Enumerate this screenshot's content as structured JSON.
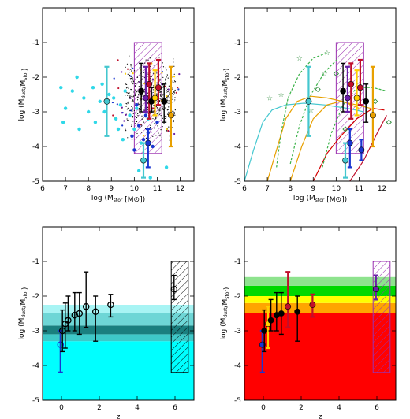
{
  "chart_data": [
    {
      "type": "scatter",
      "panel": "top-left",
      "xlabel": "log (M_stor [M_sun])",
      "ylabel": "log (M_dust/M_stor)",
      "xlim": [
        6,
        12.6
      ],
      "ylim": [
        -5,
        0
      ],
      "xticks": [
        "6",
        "7",
        "8",
        "9",
        "10",
        "11",
        "12"
      ],
      "yticks": [
        "-5",
        "-4",
        "-3",
        "-2",
        "-1"
      ],
      "hatched_box": {
        "x": [
          10.0,
          11.2
        ],
        "y": [
          -4.2,
          -1.0
        ],
        "color": "#9b30b0"
      },
      "cyan_points": [
        [
          6.8,
          -2.3
        ],
        [
          7.0,
          -2.9
        ],
        [
          7.3,
          -2.4
        ],
        [
          7.6,
          -3.5
        ],
        [
          7.8,
          -2.6
        ],
        [
          8.0,
          -3.0
        ],
        [
          8.2,
          -2.3
        ],
        [
          8.3,
          -3.3
        ],
        [
          8.5,
          -2.7
        ],
        [
          8.7,
          -3.0
        ],
        [
          8.9,
          -2.5
        ],
        [
          9.1,
          -2.6
        ],
        [
          9.2,
          -3.2
        ],
        [
          9.4,
          -2.8
        ],
        [
          9.5,
          -3.8
        ],
        [
          9.6,
          -2.4
        ],
        [
          9.8,
          -3.1
        ],
        [
          10.0,
          -3.5
        ],
        [
          10.1,
          -2.9
        ],
        [
          10.3,
          -3.9
        ],
        [
          10.5,
          -4.4
        ],
        [
          10.6,
          -3.2
        ],
        [
          10.8,
          -2.7
        ],
        [
          6.9,
          -3.3
        ],
        [
          7.5,
          -2.0
        ],
        [
          8.6,
          -2.2
        ],
        [
          9.3,
          -3.5
        ],
        [
          10.2,
          -4.7
        ],
        [
          10.7,
          -4.9
        ],
        [
          11.4,
          -4.6
        ]
      ],
      "blue_points": [
        [
          9.9,
          -3.7
        ],
        [
          10.0,
          -4.1
        ],
        [
          10.2,
          -3.4
        ],
        [
          10.4,
          -3.8
        ],
        [
          10.6,
          -3.6
        ],
        [
          10.8,
          -4.0
        ],
        [
          11.0,
          -3.3
        ],
        [
          10.1,
          -2.8
        ],
        [
          10.5,
          -3.1
        ]
      ],
      "errorbars": [
        {
          "x": 8.8,
          "y": -2.7,
          "lo": -3.7,
          "hi": -1.7,
          "color": "#44c7cf"
        },
        {
          "x": 10.3,
          "y": -2.4,
          "lo": -3.0,
          "hi": -1.6,
          "color": "#000000"
        },
        {
          "x": 10.5,
          "y": -2.6,
          "lo": -3.0,
          "hi": -1.7,
          "color": "#6a1fa8"
        },
        {
          "x": 10.65,
          "y": -2.2,
          "lo": -3.2,
          "hi": -1.6,
          "color": "#c0102c"
        },
        {
          "x": 10.75,
          "y": -2.7,
          "lo": -3.0,
          "hi": -2.3,
          "color": "#000000"
        },
        {
          "x": 10.9,
          "y": -2.6,
          "lo": -3.1,
          "hi": -1.8,
          "color": "#ffd000"
        },
        {
          "x": 11.05,
          "y": -2.3,
          "lo": -2.8,
          "hi": -1.5,
          "color": "#c0102c"
        },
        {
          "x": 11.3,
          "y": -2.7,
          "lo": -3.3,
          "hi": -2.2,
          "color": "#000000"
        },
        {
          "x": 11.6,
          "y": -3.1,
          "lo": -4.0,
          "hi": -1.7,
          "color": "#e8a000"
        },
        {
          "x": 10.6,
          "y": -3.9,
          "lo": -4.6,
          "hi": -3.5,
          "color": "#1a35d0"
        },
        {
          "x": 10.4,
          "y": -4.4,
          "lo": -4.9,
          "hi": -3.9,
          "color": "#44c7cf"
        }
      ]
    },
    {
      "type": "line",
      "panel": "top-right",
      "xlabel": "log (M_stor [M_sun])",
      "ylabel": "log (M_dust/M_stor)",
      "xlim": [
        6,
        12.6
      ],
      "ylim": [
        -5,
        0
      ],
      "xticks": [
        "6",
        "7",
        "8",
        "9",
        "10",
        "11",
        "12"
      ],
      "yticks": [
        "-5",
        "-4",
        "-3",
        "-2",
        "-1"
      ],
      "hatched_box": {
        "x": [
          10.0,
          11.2
        ],
        "y": [
          -4.2,
          -1.0
        ],
        "color": "#9b30b0"
      },
      "series": [
        {
          "color": "#44c7cf",
          "dash": false,
          "points": [
            [
              6.0,
              -5.0
            ],
            [
              6.4,
              -4.1
            ],
            [
              6.8,
              -3.3
            ],
            [
              7.2,
              -2.95
            ],
            [
              7.8,
              -2.8
            ],
            [
              8.6,
              -2.75
            ],
            [
              9.5,
              -2.8
            ],
            [
              10.5,
              -2.9
            ],
            [
              11.2,
              -3.0
            ]
          ]
        },
        {
          "color": "#e8a000",
          "dash": false,
          "points": [
            [
              7.0,
              -5.0
            ],
            [
              7.4,
              -4.1
            ],
            [
              7.8,
              -3.2
            ],
            [
              8.3,
              -2.7
            ],
            [
              8.9,
              -2.55
            ],
            [
              9.6,
              -2.6
            ],
            [
              10.3,
              -2.7
            ],
            [
              11.0,
              -2.9
            ]
          ]
        },
        {
          "color": "#e8a000",
          "dash": false,
          "points": [
            [
              8.0,
              -5.0
            ],
            [
              8.5,
              -4.0
            ],
            [
              9.0,
              -3.2
            ],
            [
              9.6,
              -2.8
            ],
            [
              10.2,
              -2.7
            ],
            [
              10.9,
              -2.8
            ],
            [
              11.5,
              -2.9
            ]
          ]
        },
        {
          "color": "#d40000",
          "dash": false,
          "points": [
            [
              9.0,
              -5.0
            ],
            [
              9.6,
              -4.2
            ],
            [
              10.2,
              -3.7
            ],
            [
              10.9,
              -3.2
            ],
            [
              11.6,
              -2.9
            ],
            [
              12.1,
              -2.95
            ]
          ]
        },
        {
          "color": "#c0102c",
          "dash": false,
          "points": [
            [
              10.6,
              -5.0
            ],
            [
              11.2,
              -4.4
            ],
            [
              11.8,
              -3.6
            ],
            [
              12.2,
              -3.1
            ]
          ]
        },
        {
          "color": "#3cb34a",
          "dash": true,
          "points": [
            [
              7.4,
              -4.6
            ],
            [
              7.6,
              -3.6
            ],
            [
              7.9,
              -2.6
            ],
            [
              8.4,
              -1.9
            ],
            [
              9.0,
              -1.45
            ],
            [
              9.6,
              -1.3
            ]
          ]
        },
        {
          "color": "#3cb34a",
          "dash": true,
          "points": [
            [
              8.0,
              -4.5
            ],
            [
              8.4,
              -3.4
            ],
            [
              8.9,
              -2.5
            ],
            [
              9.5,
              -1.85
            ],
            [
              10.1,
              -1.45
            ]
          ]
        },
        {
          "color": "#3cb34a",
          "dash": true,
          "points": [
            [
              9.4,
              -4.6
            ],
            [
              9.8,
              -3.6
            ],
            [
              10.3,
              -2.8
            ],
            [
              10.9,
              -2.3
            ],
            [
              11.6,
              -2.3
            ],
            [
              12.2,
              -2.4
            ]
          ]
        }
      ],
      "stars": [
        [
          7.1,
          -2.6
        ],
        [
          7.6,
          -2.5
        ],
        [
          8.4,
          -1.45
        ],
        [
          8.9,
          -2.95
        ],
        [
          9.5,
          -1.9
        ],
        [
          9.6,
          -1.3
        ]
      ],
      "diamonds": [
        [
          9.2,
          -2.35
        ],
        [
          10.0,
          -1.9
        ],
        [
          10.4,
          -3.5
        ],
        [
          11.7,
          -2.7
        ],
        [
          12.3,
          -3.3
        ]
      ],
      "errorbars": [
        {
          "x": 8.8,
          "y": -2.7,
          "lo": -3.7,
          "hi": -1.7,
          "color": "#44c7cf"
        },
        {
          "x": 10.3,
          "y": -2.4,
          "lo": -3.0,
          "hi": -1.6,
          "color": "#000000"
        },
        {
          "x": 10.5,
          "y": -2.6,
          "lo": -3.0,
          "hi": -1.7,
          "color": "#6a1fa8"
        },
        {
          "x": 10.65,
          "y": -2.2,
          "lo": -3.2,
          "hi": -1.6,
          "color": "#c0102c"
        },
        {
          "x": 10.9,
          "y": -2.6,
          "lo": -3.1,
          "hi": -1.8,
          "color": "#ffd000"
        },
        {
          "x": 11.05,
          "y": -2.3,
          "lo": -2.8,
          "hi": -1.5,
          "color": "#c0102c"
        },
        {
          "x": 11.3,
          "y": -2.7,
          "lo": -3.3,
          "hi": -2.2,
          "color": "#000000"
        },
        {
          "x": 11.6,
          "y": -3.1,
          "lo": -4.0,
          "hi": -1.7,
          "color": "#e8a000"
        },
        {
          "x": 10.6,
          "y": -3.9,
          "lo": -4.6,
          "hi": -3.5,
          "color": "#1a35d0"
        },
        {
          "x": 10.4,
          "y": -4.4,
          "lo": -4.9,
          "hi": -3.9,
          "color": "#44c7cf"
        },
        {
          "x": 11.1,
          "y": -4.1,
          "lo": -4.4,
          "hi": -3.8,
          "color": "#1a35d0"
        }
      ]
    },
    {
      "type": "scatter",
      "panel": "bottom-left",
      "xlabel": "z",
      "ylabel": "log (M_dust/M_stor)",
      "xlim": [
        -1,
        7
      ],
      "ylim": [
        -5,
        0
      ],
      "xticks": [
        "0",
        "2",
        "4",
        "6"
      ],
      "yticks": [
        "-5",
        "-4",
        "-3",
        "-2",
        "-1"
      ],
      "bands": [
        {
          "y": [
            -5.0,
            -3.3
          ],
          "color": "#00ffff"
        },
        {
          "y": [
            -3.3,
            -3.1
          ],
          "color": "#3ec8c8"
        },
        {
          "y": [
            -3.1,
            -2.85
          ],
          "color": "#1a7f7f"
        },
        {
          "y": [
            -2.85,
            -2.5
          ],
          "color": "#6ed6d6"
        },
        {
          "y": [
            -2.5,
            -2.25
          ],
          "color": "#a8f4f4"
        }
      ],
      "hatched_box": {
        "x": [
          5.8,
          6.7
        ],
        "y": [
          -4.2,
          -1.0
        ],
        "color": "#000000"
      },
      "errorbars": [
        {
          "x": -0.05,
          "y": -3.4,
          "lo": -4.2,
          "hi": -3.0,
          "color": "#1a35d0"
        },
        {
          "x": 0.05,
          "y": -3.0,
          "lo": -3.6,
          "hi": -2.4,
          "color": "#000000"
        },
        {
          "x": 0.2,
          "y": -2.8,
          "lo": -3.5,
          "hi": -2.2,
          "color": "#000000"
        },
        {
          "x": 0.35,
          "y": -2.7,
          "lo": -3.0,
          "hi": -2.0,
          "color": "#000000"
        },
        {
          "x": 0.7,
          "y": -2.55,
          "lo": -3.0,
          "hi": -1.9,
          "color": "#000000"
        },
        {
          "x": 0.95,
          "y": -2.5,
          "lo": -3.1,
          "hi": -1.9,
          "color": "#000000"
        },
        {
          "x": 1.3,
          "y": -2.3,
          "lo": -2.9,
          "hi": -1.3,
          "color": "#000000"
        },
        {
          "x": 1.8,
          "y": -2.45,
          "lo": -3.3,
          "hi": -2.0,
          "color": "#000000"
        },
        {
          "x": 2.6,
          "y": -2.25,
          "lo": -2.6,
          "hi": -1.95,
          "color": "#000000"
        },
        {
          "x": 5.95,
          "y": -1.8,
          "lo": -2.1,
          "hi": -1.4,
          "color": "#000000"
        }
      ]
    },
    {
      "type": "scatter",
      "panel": "bottom-right",
      "xlabel": "z",
      "ylabel": "log (M_dust/M_stor)",
      "xlim": [
        -1,
        7
      ],
      "ylim": [
        -5,
        0
      ],
      "xticks": [
        "0",
        "2",
        "4",
        "6"
      ],
      "yticks": [
        "-5",
        "-4",
        "-3",
        "-2",
        "-1"
      ],
      "bands": [
        {
          "y": [
            -5.0,
            -2.5
          ],
          "color": "#ff0000"
        },
        {
          "y": [
            -2.5,
            -2.2
          ],
          "color": "#ffa500"
        },
        {
          "y": [
            -2.2,
            -2.0
          ],
          "color": "#ffff00"
        },
        {
          "y": [
            -2.0,
            -1.7
          ],
          "color": "#00d800"
        },
        {
          "y": [
            -1.7,
            -1.45
          ],
          "color": "#8ee38e"
        }
      ],
      "hatched_box": {
        "x": [
          5.8,
          6.7
        ],
        "y": [
          -4.2,
          -1.0
        ],
        "color": "#9b30b0"
      },
      "errorbars": [
        {
          "x": -0.05,
          "y": -3.4,
          "lo": -4.2,
          "hi": -3.0,
          "color": "#1a35d0"
        },
        {
          "x": 0.05,
          "y": -3.0,
          "lo": -3.6,
          "hi": -2.4,
          "color": "#000000"
        },
        {
          "x": 0.25,
          "y": -2.8,
          "lo": -3.5,
          "hi": -2.3,
          "color": "#ffd000"
        },
        {
          "x": 0.4,
          "y": -2.7,
          "lo": -3.0,
          "hi": -2.1,
          "color": "#000000"
        },
        {
          "x": 0.7,
          "y": -2.55,
          "lo": -3.0,
          "hi": -1.9,
          "color": "#000000"
        },
        {
          "x": 0.95,
          "y": -2.5,
          "lo": -3.1,
          "hi": -1.9,
          "color": "#000000"
        },
        {
          "x": 1.3,
          "y": -2.3,
          "lo": -2.9,
          "hi": -1.3,
          "color": "#c0102c"
        },
        {
          "x": 1.8,
          "y": -2.45,
          "lo": -3.3,
          "hi": -2.0,
          "color": "#000000"
        },
        {
          "x": 2.6,
          "y": -2.25,
          "lo": -2.6,
          "hi": -1.95,
          "color": "#c0102c"
        },
        {
          "x": 5.95,
          "y": -1.8,
          "lo": -2.1,
          "hi": -1.4,
          "color": "#6a1fa8"
        }
      ]
    }
  ]
}
